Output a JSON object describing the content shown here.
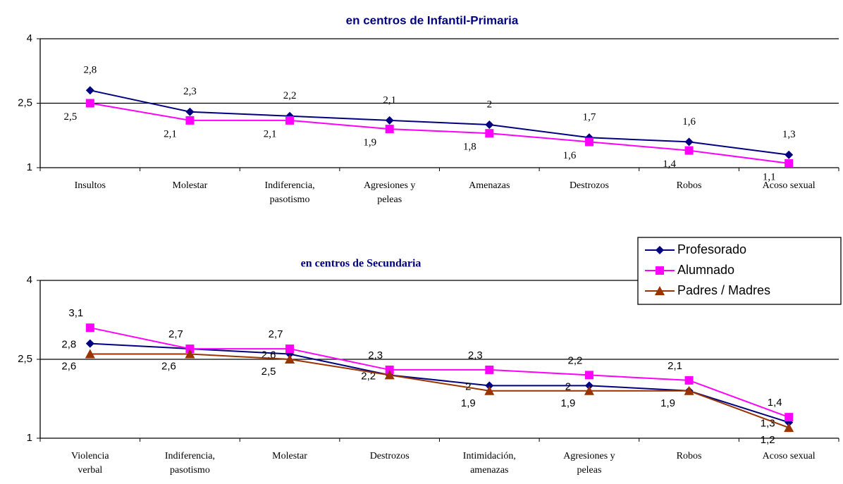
{
  "chart_data": [
    {
      "type": "line",
      "title": "en centros de Infantil-Primaria",
      "categories": [
        "Insultos",
        "Molestar",
        "Indiferencia, pasotismo",
        "Agresiones y peleas",
        "Amenazas",
        "Destrozos",
        "Robos",
        "Acoso sexual"
      ],
      "series": [
        {
          "name": "Profesorado",
          "color": "#000080",
          "marker": "diamond",
          "values": [
            2.8,
            2.3,
            2.2,
            2.1,
            2,
            1.7,
            1.6,
            1.3
          ],
          "value_labels": [
            "2,8",
            "2,3",
            "2,2",
            "2,1",
            "2",
            "1,7",
            "1,6",
            "1,3"
          ]
        },
        {
          "name": "Alumnado",
          "color": "#ff00ff",
          "marker": "square",
          "values": [
            2.5,
            2.1,
            2.1,
            1.9,
            1.8,
            1.6,
            1.4,
            1.1
          ],
          "value_labels": [
            "2,5",
            "2,1",
            "2,1",
            "1,9",
            "1,8",
            "1,6",
            "1,4",
            "1,1"
          ]
        }
      ],
      "ylim": [
        1,
        4
      ],
      "yticks": [
        1,
        {
          "value": 2.5,
          "label": "2,5"
        },
        4
      ],
      "grid": true,
      "legend": false
    },
    {
      "type": "line",
      "title": "en centros de Secundaria",
      "categories": [
        "Violencia verbal",
        "Indiferencia, pasotismo",
        "Molestar",
        "Destrozos",
        "Intimidación, amenazas",
        "Agresiones y peleas",
        "Robos",
        "Acoso sexual"
      ],
      "series": [
        {
          "name": "Profesorado",
          "color": "#000080",
          "marker": "diamond",
          "values": [
            2.8,
            2.7,
            2.6,
            2.2,
            2,
            2,
            1.9,
            1.3
          ],
          "value_labels": [
            "2,8",
            null,
            "2,6",
            "2,2",
            "2",
            "2",
            null,
            "1,3"
          ]
        },
        {
          "name": "Alumnado",
          "color": "#ff00ff",
          "marker": "square",
          "values": [
            3.1,
            2.7,
            2.7,
            2.3,
            2.3,
            2.2,
            2.1,
            1.4
          ],
          "value_labels": [
            "3,1",
            "2,7",
            "2,7",
            "2,3",
            "2,3",
            "2,2",
            "2,1",
            "1,4"
          ]
        },
        {
          "name": "Padres / Madres",
          "color": "#993300",
          "marker": "triangle",
          "values": [
            2.6,
            2.6,
            2.5,
            2.2,
            1.9,
            1.9,
            1.9,
            1.2
          ],
          "value_labels": [
            "2,6",
            "2,6",
            "2,5",
            null,
            "1,9",
            "1,9",
            "1,9",
            "1,2"
          ]
        }
      ],
      "ylim": [
        1,
        4
      ],
      "yticks": [
        1,
        {
          "value": 2.5,
          "label": "2,5"
        },
        4
      ],
      "grid": true,
      "legend": "upper right"
    }
  ]
}
